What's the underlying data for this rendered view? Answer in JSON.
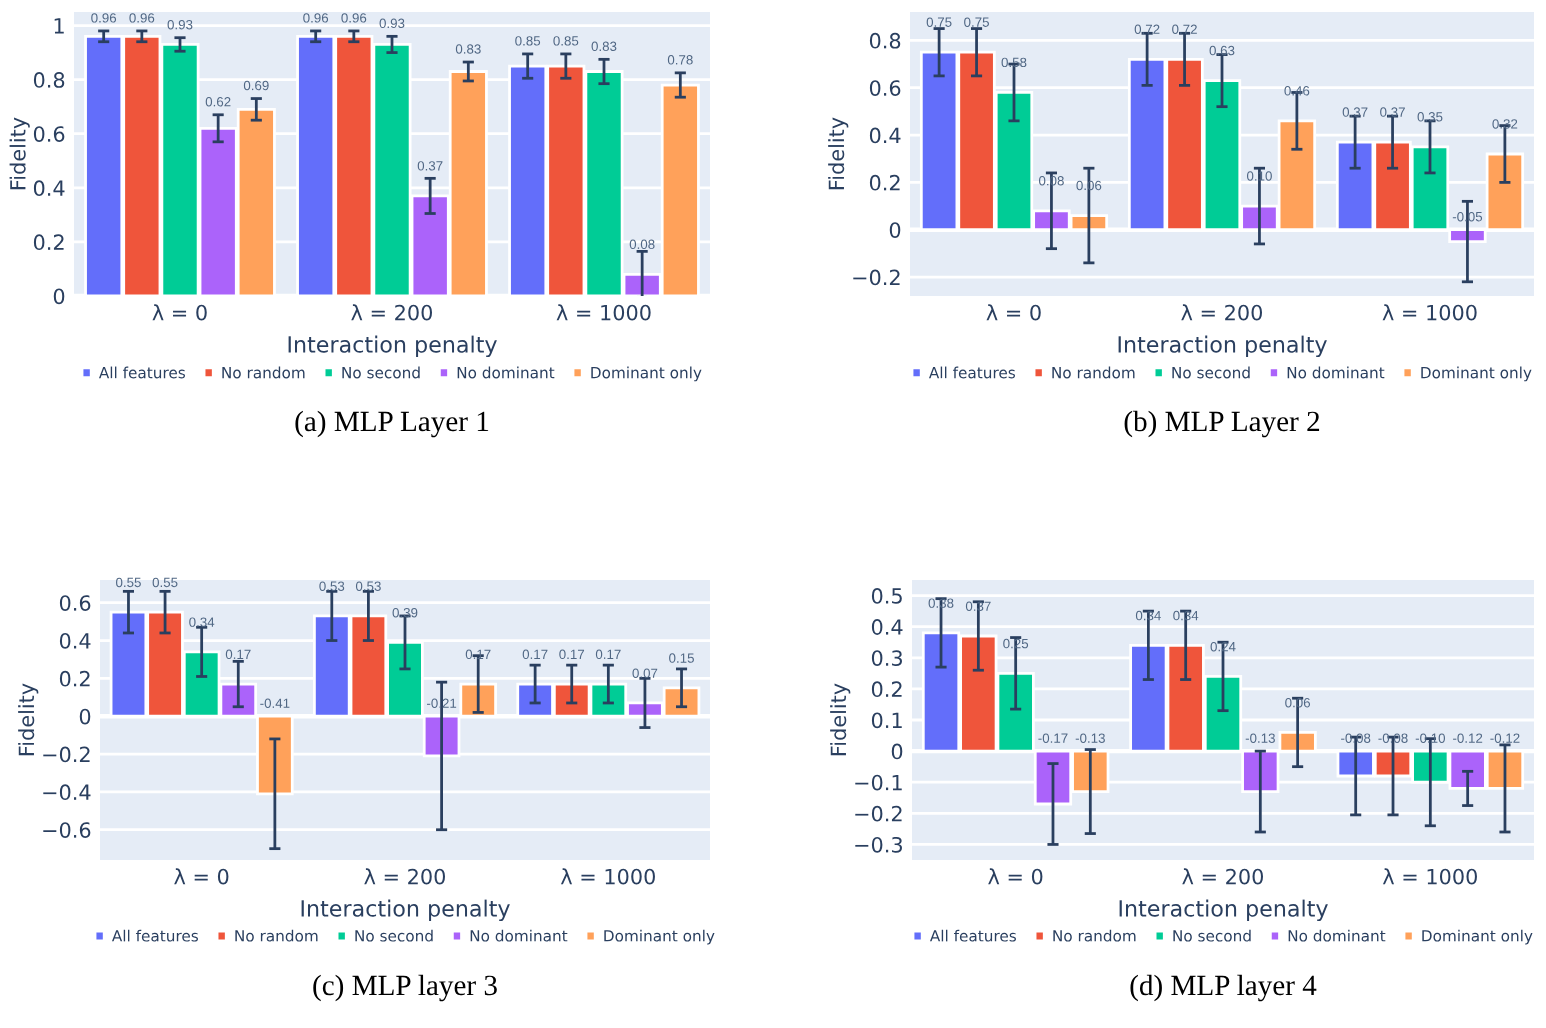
{
  "chart_data": [
    {
      "type": "bar",
      "xlabel": "Interaction penalty",
      "ylabel": "Fidelity",
      "annotations": [
        "(a) MLP Layer 1"
      ],
      "categories": [
        "λ = 0",
        "λ = 200",
        "λ = 1000"
      ],
      "ylim": [
        0,
        1.05
      ],
      "yticks": [
        0,
        0.2,
        0.4,
        0.6,
        0.8,
        1
      ],
      "grid": "y",
      "legend": "bottom",
      "data_labels": true,
      "series": [
        {
          "name": "All features",
          "color": "#636efa",
          "values": [
            0.96,
            0.96,
            0.85
          ],
          "errors": [
            0.02,
            0.02,
            0.045
          ]
        },
        {
          "name": "No random",
          "color": "#ef553b",
          "values": [
            0.96,
            0.96,
            0.85
          ],
          "errors": [
            0.02,
            0.02,
            0.045
          ]
        },
        {
          "name": "No second",
          "color": "#00cc96",
          "values": [
            0.93,
            0.93,
            0.83
          ],
          "errors": [
            0.025,
            0.03,
            0.045
          ]
        },
        {
          "name": "No dominant",
          "color": "#ab63fa",
          "values": [
            0.62,
            0.37,
            0.08
          ],
          "errors": [
            0.05,
            0.065,
            0.085
          ]
        },
        {
          "name": "Dominant only",
          "color": "#ffa15a",
          "values": [
            0.69,
            0.83,
            0.78
          ],
          "errors": [
            0.04,
            0.035,
            0.045
          ]
        }
      ]
    },
    {
      "type": "bar",
      "xlabel": "Interaction penalty",
      "ylabel": "Fidelity",
      "annotations": [
        "(b) MLP Layer 2"
      ],
      "categories": [
        "λ = 0",
        "λ = 200",
        "λ = 1000"
      ],
      "ylim": [
        -0.28,
        0.92
      ],
      "yticks": [
        {
          "value": -0.2,
          "label": "−0.2"
        },
        0,
        0.2,
        0.4,
        0.6,
        0.8
      ],
      "grid": "y",
      "legend": "bottom",
      "data_labels": true,
      "series": [
        {
          "name": "All features",
          "color": "#636efa",
          "values": [
            0.75,
            0.72,
            0.37
          ],
          "errors": [
            0.1,
            0.11,
            0.11
          ]
        },
        {
          "name": "No random",
          "color": "#ef553b",
          "values": [
            0.75,
            0.72,
            0.37
          ],
          "errors": [
            0.1,
            0.11,
            0.11
          ]
        },
        {
          "name": "No second",
          "color": "#00cc96",
          "values": [
            0.58,
            0.63,
            0.35
          ],
          "errors": [
            0.12,
            0.11,
            0.11
          ]
        },
        {
          "name": "No dominant",
          "color": "#ab63fa",
          "values": [
            0.08,
            0.1,
            -0.05
          ],
          "errors": [
            0.16,
            0.16,
            0.17
          ],
          "value_labels": [
            "0.08",
            "0.10",
            "-0.05"
          ]
        },
        {
          "name": "Dominant only",
          "color": "#ffa15a",
          "values": [
            0.06,
            0.46,
            0.32
          ],
          "errors": [
            0.2,
            0.12,
            0.12
          ]
        }
      ]
    },
    {
      "type": "bar",
      "xlabel": "Interaction penalty",
      "ylabel": "Fidelity",
      "annotations": [
        "(c) MLP layer 3"
      ],
      "categories": [
        "λ = 0",
        "λ = 200",
        "λ = 1000"
      ],
      "ylim": [
        -0.76,
        0.72
      ],
      "yticks": [
        {
          "value": -0.6,
          "label": "−0.6"
        },
        {
          "value": -0.4,
          "label": "−0.4"
        },
        {
          "value": -0.2,
          "label": "−0.2"
        },
        0,
        0.2,
        0.4,
        0.6
      ],
      "grid": "y",
      "legend": "bottom",
      "data_labels": true,
      "series": [
        {
          "name": "All features",
          "color": "#636efa",
          "values": [
            0.55,
            0.53,
            0.17
          ],
          "errors": [
            0.11,
            0.13,
            0.1
          ]
        },
        {
          "name": "No random",
          "color": "#ef553b",
          "values": [
            0.55,
            0.53,
            0.17
          ],
          "errors": [
            0.11,
            0.13,
            0.1
          ]
        },
        {
          "name": "No second",
          "color": "#00cc96",
          "values": [
            0.34,
            0.39,
            0.17
          ],
          "errors": [
            0.13,
            0.14,
            0.1
          ]
        },
        {
          "name": "No dominant",
          "color": "#ab63fa",
          "values": [
            0.17,
            -0.21,
            0.07
          ],
          "errors": [
            0.12,
            0.39,
            0.13
          ]
        },
        {
          "name": "Dominant only",
          "color": "#ffa15a",
          "values": [
            -0.41,
            0.17,
            0.15
          ],
          "errors": [
            0.29,
            0.15,
            0.1
          ]
        }
      ]
    },
    {
      "type": "bar",
      "xlabel": "Interaction penalty",
      "ylabel": "Fidelity",
      "annotations": [
        "(d) MLP layer 4"
      ],
      "categories": [
        "λ = 0",
        "λ = 200",
        "λ = 1000"
      ],
      "ylim": [
        -0.35,
        0.55
      ],
      "yticks": [
        {
          "value": -0.3,
          "label": "−0.3"
        },
        {
          "value": -0.2,
          "label": "−0.2"
        },
        {
          "value": -0.1,
          "label": "−0.1"
        },
        0,
        0.1,
        0.2,
        0.3,
        0.4,
        0.5
      ],
      "grid": "y",
      "legend": "bottom",
      "data_labels": true,
      "series": [
        {
          "name": "All features",
          "color": "#636efa",
          "values": [
            0.38,
            0.34,
            -0.08
          ],
          "errors": [
            0.11,
            0.11,
            0.125
          ]
        },
        {
          "name": "No random",
          "color": "#ef553b",
          "values": [
            0.37,
            0.34,
            -0.08
          ],
          "errors": [
            0.11,
            0.11,
            0.125
          ]
        },
        {
          "name": "No second",
          "color": "#00cc96",
          "values": [
            0.25,
            0.24,
            -0.1
          ],
          "errors": [
            0.115,
            0.11,
            0.14
          ],
          "value_labels": [
            "0.25",
            "0.24",
            "-0.10"
          ]
        },
        {
          "name": "No dominant",
          "color": "#ab63fa",
          "values": [
            -0.17,
            -0.13,
            -0.12
          ],
          "errors": [
            0.13,
            0.13,
            0.055
          ]
        },
        {
          "name": "Dominant only",
          "color": "#ffa15a",
          "values": [
            -0.13,
            0.06,
            -0.12
          ],
          "errors": [
            0.135,
            0.11,
            0.14
          ]
        }
      ]
    }
  ]
}
